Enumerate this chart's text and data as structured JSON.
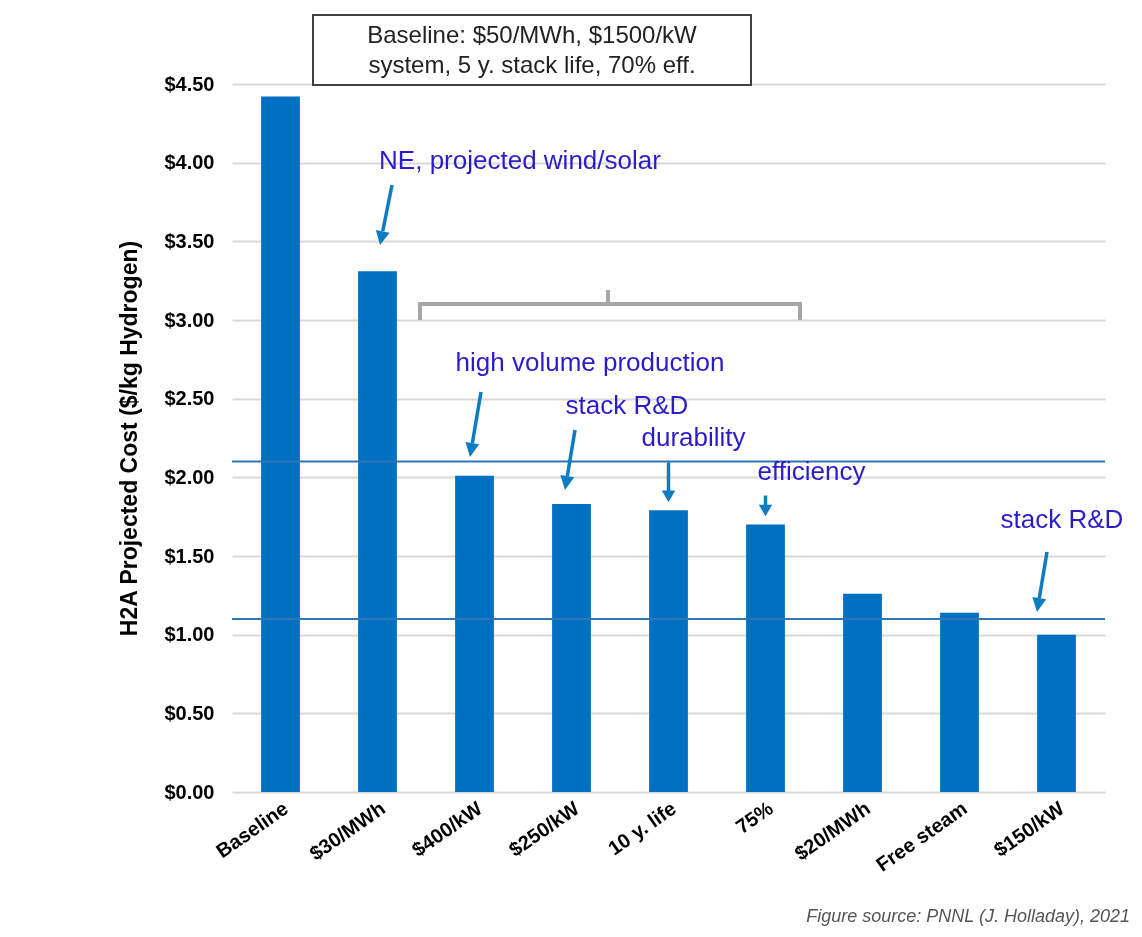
{
  "chart_data": {
    "type": "bar",
    "ylabel": "H2A Projected Cost ($/kg Hydrogen)",
    "categories": [
      "Baseline",
      "$30/MWh",
      "$400/kW",
      "$250/kW",
      "10 y. life",
      "75%",
      "$20/MWh",
      "Free steam",
      "$150/kW"
    ],
    "values": [
      4.42,
      3.31,
      2.01,
      1.83,
      1.79,
      1.7,
      1.26,
      1.14,
      1.0
    ],
    "color": "#0070c0",
    "ylim": [
      0,
      4.5
    ],
    "yticks": [
      {
        "value": 0,
        "label": "$0.00"
      },
      {
        "value": 0.5,
        "label": "$0.50"
      },
      {
        "value": 1,
        "label": "$1.00"
      },
      {
        "value": 1.5,
        "label": "$1.50"
      },
      {
        "value": 2,
        "label": "$2.00"
      },
      {
        "value": 2.5,
        "label": "$2.50"
      },
      {
        "value": 3,
        "label": "$3.00"
      },
      {
        "value": 3.5,
        "label": "$3.50"
      },
      {
        "value": 4,
        "label": "$4.00"
      },
      {
        "value": 4.5,
        "label": "$4.50"
      }
    ],
    "grid": "y",
    "ref_lines": [
      {
        "axis": "y",
        "value": 2.1,
        "color": "#2e75b6"
      },
      {
        "axis": "y",
        "value": 1.1,
        "color": "#2e75b6"
      }
    ],
    "annotations": [
      "Baseline: $50/MWh, $1500/kW system, 5 y. stack life, 70% eff.",
      "NE, projected wind/solar",
      "high volume production",
      "stack R&D",
      {
        "text": "durability",
        "x": "10 y. life",
        "y": 1.79
      },
      {
        "text": "efficiency",
        "x": "75%",
        "y": 1.7
      },
      "stack R&D",
      "Figure source: PNNL (J. Holladay), 2021"
    ]
  }
}
